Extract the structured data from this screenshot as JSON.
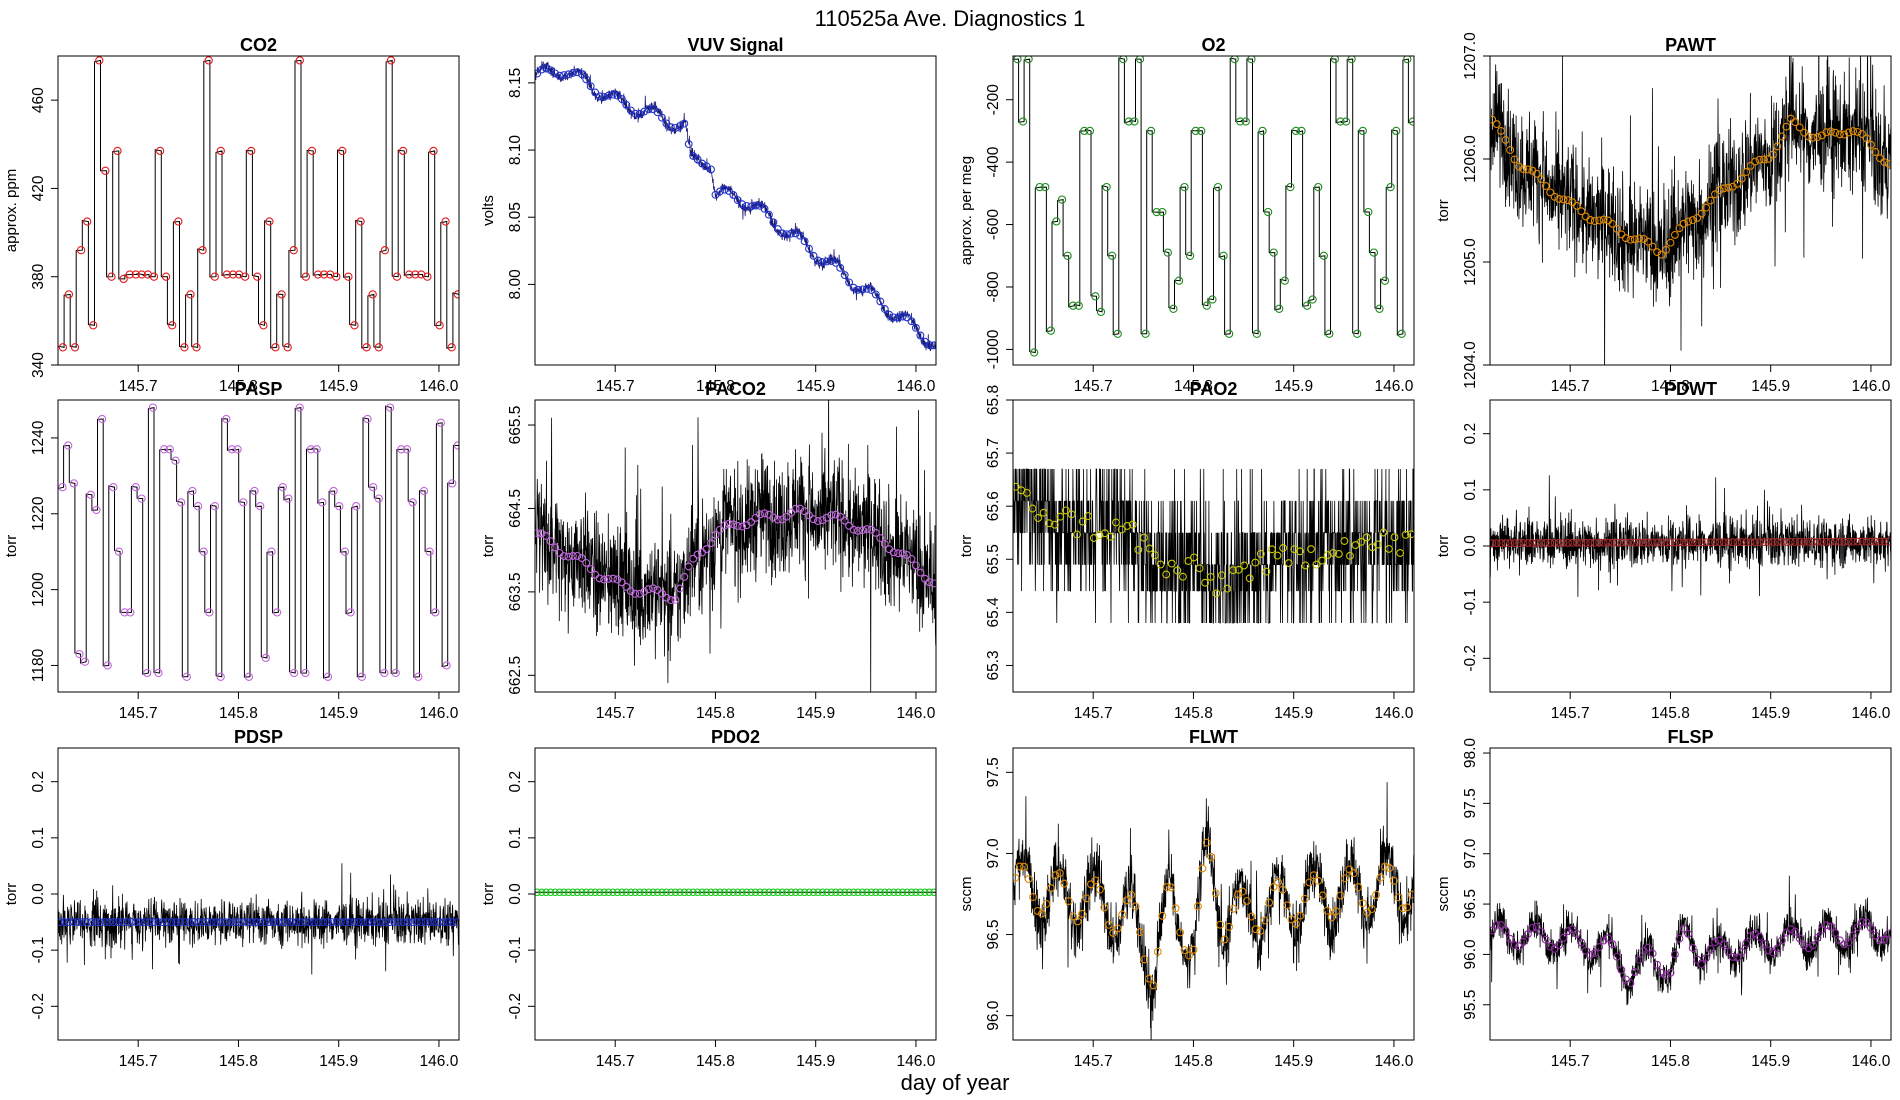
{
  "figure": {
    "title": "110525a   Ave. Diagnostics 1",
    "xlabel": "day of year",
    "x_range": [
      145.62,
      146.02
    ],
    "x_ticks": [
      145.7,
      145.8,
      145.9,
      146.0
    ],
    "x_tick_labels": [
      "145.7",
      "145.8",
      "145.9",
      "146.0"
    ],
    "colors": {
      "black": "#000000",
      "red": "#e41a1c",
      "navy": "#1a1a6e",
      "blue": "#2233cc",
      "green": "#1e8c1e",
      "orange": "#e08a00",
      "purple": "#8e2aa0",
      "violet": "#c266dd",
      "yellow": "#c8c800",
      "darkred": "#a52a2a",
      "lime": "#22cc22"
    }
  },
  "chart_data": [
    {
      "type": "line",
      "title": "CO2",
      "ylabel": "approx. ppm",
      "ylim": [
        340,
        480
      ],
      "y_ticks": [
        340,
        380,
        420,
        460
      ],
      "y_tick_labels": [
        "340",
        "380",
        "420",
        "460"
      ],
      "style": "step",
      "marker_color": "red",
      "x_start": 145.62,
      "x_end": 146.02,
      "pattern": [
        348,
        372,
        348,
        392,
        405,
        358,
        478,
        428,
        380,
        437,
        379,
        381,
        381,
        381,
        381,
        380,
        437,
        380,
        358,
        405,
        348,
        372,
        348,
        392,
        478,
        380,
        437,
        381,
        381,
        381,
        380,
        437,
        380,
        358,
        405,
        348,
        372,
        348,
        392,
        478,
        380,
        437,
        381,
        381,
        381,
        380,
        437,
        380,
        358,
        405,
        348,
        372,
        348,
        392,
        478,
        380,
        437,
        381,
        381,
        381,
        380,
        437,
        358,
        405,
        348,
        372
      ],
      "trend": [],
      "noise": 0
    },
    {
      "type": "line",
      "title": "VUV Signal",
      "ylabel": "volts",
      "ylim": [
        7.94,
        8.17
      ],
      "y_ticks": [
        8.0,
        8.05,
        8.1,
        8.15
      ],
      "y_tick_labels": [
        "8.00",
        "8.05",
        "8.10",
        "8.15"
      ],
      "style": "dense",
      "marker_color": "blue",
      "line_color": "navy",
      "x_start": 145.62,
      "x_end": 146.02,
      "trend": [
        [
          145.62,
          8.155
        ],
        [
          145.65,
          8.16
        ],
        [
          145.7,
          8.137
        ],
        [
          145.77,
          8.117
        ],
        [
          145.775,
          8.092
        ],
        [
          145.795,
          8.092
        ],
        [
          145.8,
          8.068
        ],
        [
          145.83,
          8.063
        ],
        [
          146.02,
          7.955
        ]
      ],
      "oscillation": 0.006,
      "noise": 0.002
    },
    {
      "type": "line",
      "title": "O2",
      "ylabel": "approx. per meg",
      "ylim": [
        -1050,
        -60
      ],
      "y_ticks": [
        -1000,
        -800,
        -600,
        -400,
        -200
      ],
      "y_tick_labels": [
        "-1000",
        "-800",
        "-600",
        "-400",
        "-200"
      ],
      "style": "step",
      "marker_color": "green",
      "x_start": 145.62,
      "x_end": 146.02,
      "pattern": [
        -70,
        -270,
        -70,
        -1010,
        -480,
        -480,
        -940,
        -590,
        -520,
        -700,
        -860,
        -860,
        -300,
        -300,
        -830,
        -880,
        -480,
        -700,
        -950,
        -70,
        -270,
        -270,
        -70,
        -950,
        -300,
        -560,
        -560,
        -690,
        -870,
        -780,
        -480,
        -700,
        -300,
        -300,
        -860,
        -840,
        -480,
        -700,
        -950,
        -70,
        -270,
        -270,
        -70,
        -950,
        -300,
        -560,
        -690,
        -870,
        -780,
        -480,
        -300,
        -300,
        -860,
        -840,
        -480,
        -700,
        -950,
        -70,
        -270,
        -270,
        -70,
        -950,
        -300,
        -560,
        -690,
        -870,
        -780,
        -480,
        -300,
        -950,
        -70,
        -270
      ],
      "trend": [],
      "noise": 0
    },
    {
      "type": "line",
      "title": "PAWT",
      "ylabel": "torr",
      "ylim": [
        1204.0,
        1207.0
      ],
      "y_ticks": [
        1204.0,
        1205.0,
        1206.0,
        1207.0
      ],
      "y_tick_labels": [
        "1204.0",
        "1205.0",
        "1206.0",
        "1207.0"
      ],
      "style": "dense",
      "marker_color": "orange",
      "x_start": 145.62,
      "x_end": 146.02,
      "trend": [
        [
          145.62,
          1206.4
        ],
        [
          145.65,
          1205.95
        ],
        [
          145.7,
          1205.55
        ],
        [
          145.75,
          1205.3
        ],
        [
          145.79,
          1205.1
        ],
        [
          145.83,
          1205.5
        ],
        [
          145.86,
          1205.75
        ],
        [
          145.9,
          1206.05
        ],
        [
          145.92,
          1206.35
        ],
        [
          145.95,
          1206.2
        ],
        [
          145.98,
          1206.3
        ],
        [
          146.02,
          1205.95
        ]
      ],
      "oscillation": 0.06,
      "noise": 0.28
    },
    {
      "type": "line",
      "title": "PASP",
      "ylabel": "torr",
      "ylim": [
        1173,
        1250
      ],
      "y_ticks": [
        1180,
        1200,
        1220,
        1240
      ],
      "y_tick_labels": [
        "1180",
        "1200",
        "1220",
        "1240"
      ],
      "style": "step",
      "marker_color": "violet",
      "x_start": 145.62,
      "x_end": 146.02,
      "pattern": [
        1227,
        1238,
        1228,
        1183,
        1181,
        1225,
        1221,
        1245,
        1180,
        1227,
        1210,
        1194,
        1194,
        1227,
        1224,
        1178,
        1248,
        1178,
        1237,
        1237,
        1234,
        1223,
        1177,
        1226,
        1222,
        1210,
        1194,
        1222,
        1177,
        1245,
        1237,
        1237,
        1223,
        1177,
        1226,
        1222,
        1182,
        1210,
        1194,
        1227,
        1224,
        1178,
        1248,
        1178,
        1237,
        1237,
        1223,
        1177,
        1226,
        1222,
        1210,
        1194,
        1222,
        1177,
        1245,
        1227,
        1224,
        1178,
        1248,
        1178,
        1237,
        1237,
        1223,
        1177,
        1226,
        1210,
        1194,
        1244,
        1180,
        1228,
        1238
      ],
      "trend": [],
      "noise": 0
    },
    {
      "type": "line",
      "title": "PACO2",
      "ylabel": "torr",
      "ylim": [
        662.3,
        665.8
      ],
      "y_ticks": [
        662.5,
        663.5,
        664.5,
        665.5
      ],
      "y_tick_labels": [
        "662.5",
        "663.5",
        "664.5",
        "665.5"
      ],
      "style": "dense",
      "marker_color": "violet",
      "x_start": 145.62,
      "x_end": 146.02,
      "trend": [
        [
          145.62,
          664.2
        ],
        [
          145.66,
          663.9
        ],
        [
          145.7,
          663.6
        ],
        [
          145.73,
          663.5
        ],
        [
          145.76,
          663.45
        ],
        [
          145.78,
          663.9
        ],
        [
          145.8,
          664.2
        ],
        [
          145.83,
          664.35
        ],
        [
          145.88,
          664.45
        ],
        [
          145.93,
          664.35
        ],
        [
          145.97,
          664.1
        ],
        [
          146.02,
          663.6
        ]
      ],
      "oscillation": 0.08,
      "noise": 0.35
    },
    {
      "type": "line",
      "title": "PAO2",
      "ylabel": "torr",
      "ylim": [
        65.25,
        65.8
      ],
      "y_ticks": [
        65.3,
        65.4,
        65.5,
        65.6,
        65.7,
        65.8
      ],
      "y_tick_labels": [
        "65.3",
        "65.4",
        "65.5",
        "65.6",
        "65.7",
        "65.8"
      ],
      "style": "quantized",
      "marker_color": "yellow",
      "x_start": 145.62,
      "x_end": 146.02,
      "trend": [
        [
          145.62,
          65.62
        ],
        [
          145.66,
          65.58
        ],
        [
          145.7,
          65.56
        ],
        [
          145.74,
          65.55
        ],
        [
          145.77,
          65.48
        ],
        [
          145.8,
          65.48
        ],
        [
          145.82,
          65.45
        ],
        [
          145.86,
          65.49
        ],
        [
          145.9,
          65.5
        ],
        [
          145.95,
          65.53
        ],
        [
          146.02,
          65.53
        ]
      ],
      "levels": [
        65.38,
        65.44,
        65.49,
        65.55,
        65.61,
        65.67
      ],
      "noise": 0.07
    },
    {
      "type": "line",
      "title": "PDWT",
      "ylabel": "torr",
      "ylim": [
        -0.26,
        0.26
      ],
      "y_ticks": [
        -0.2,
        -0.1,
        0.0,
        0.1,
        0.2
      ],
      "y_tick_labels": [
        "-0.2",
        "-0.1",
        "0.0",
        "0.1",
        "0.2"
      ],
      "style": "dense",
      "marker_color": "darkred",
      "x_start": 145.62,
      "x_end": 146.02,
      "trend": [
        [
          145.62,
          0.005
        ],
        [
          146.02,
          0.008
        ]
      ],
      "oscillation": 0,
      "noise": 0.022
    },
    {
      "type": "line",
      "title": "PDSP",
      "ylabel": "torr",
      "ylim": [
        -0.26,
        0.26
      ],
      "y_ticks": [
        -0.2,
        -0.1,
        0.0,
        0.1,
        0.2
      ],
      "y_tick_labels": [
        "-0.2",
        "-0.1",
        "0.0",
        "0.1",
        "0.2"
      ],
      "style": "dense",
      "marker_color": "blue",
      "x_start": 145.62,
      "x_end": 146.02,
      "trend": [
        [
          145.62,
          -0.05
        ],
        [
          146.02,
          -0.05
        ]
      ],
      "oscillation": 0,
      "noise": 0.02
    },
    {
      "type": "line",
      "title": "PDO2",
      "ylabel": "torr",
      "ylim": [
        -0.26,
        0.26
      ],
      "y_ticks": [
        -0.2,
        -0.1,
        0.0,
        0.1,
        0.2
      ],
      "y_tick_labels": [
        "-0.2",
        "-0.1",
        "0.0",
        "0.1",
        "0.2"
      ],
      "style": "flat",
      "marker_color": "lime",
      "x_start": 145.62,
      "x_end": 146.02,
      "trend": [
        [
          145.62,
          0.003
        ],
        [
          146.02,
          0.003
        ]
      ],
      "oscillation": 0,
      "noise": 0
    },
    {
      "type": "line",
      "title": "FLWT",
      "ylabel": "sccm",
      "ylim": [
        95.85,
        97.65
      ],
      "y_ticks": [
        96.0,
        96.5,
        97.0,
        97.5
      ],
      "y_tick_labels": [
        "96.0",
        "96.5",
        "97.0",
        "97.5"
      ],
      "style": "dense",
      "marker_color": "orange",
      "x_start": 145.62,
      "x_end": 146.02,
      "trend": [
        [
          145.62,
          96.8
        ],
        [
          145.7,
          96.7
        ],
        [
          145.74,
          96.6
        ],
        [
          145.76,
          96.3
        ],
        [
          145.775,
          96.7
        ],
        [
          145.8,
          96.45
        ],
        [
          145.815,
          97.0
        ],
        [
          145.83,
          96.6
        ],
        [
          145.88,
          96.68
        ],
        [
          145.95,
          96.76
        ],
        [
          146.02,
          96.8
        ]
      ],
      "oscillation": 0.2,
      "noise": 0.09
    },
    {
      "type": "line",
      "title": "FLSP",
      "ylabel": "sccm",
      "ylim": [
        95.15,
        98.05
      ],
      "y_ticks": [
        95.5,
        96.0,
        96.5,
        97.0,
        97.5,
        98.0
      ],
      "y_tick_labels": [
        "95.5",
        "96.0",
        "96.5",
        "97.0",
        "97.5",
        "98.0"
      ],
      "style": "dense",
      "marker_color": "purple",
      "x_start": 145.62,
      "x_end": 146.02,
      "trend": [
        [
          145.62,
          96.2
        ],
        [
          145.7,
          96.15
        ],
        [
          145.74,
          96.05
        ],
        [
          145.76,
          95.8
        ],
        [
          145.78,
          96.0
        ],
        [
          145.8,
          95.85
        ],
        [
          145.815,
          96.2
        ],
        [
          145.83,
          96.0
        ],
        [
          145.88,
          96.1
        ],
        [
          145.95,
          96.18
        ],
        [
          146.02,
          96.25
        ]
      ],
      "oscillation": 0.15,
      "noise": 0.09
    }
  ]
}
